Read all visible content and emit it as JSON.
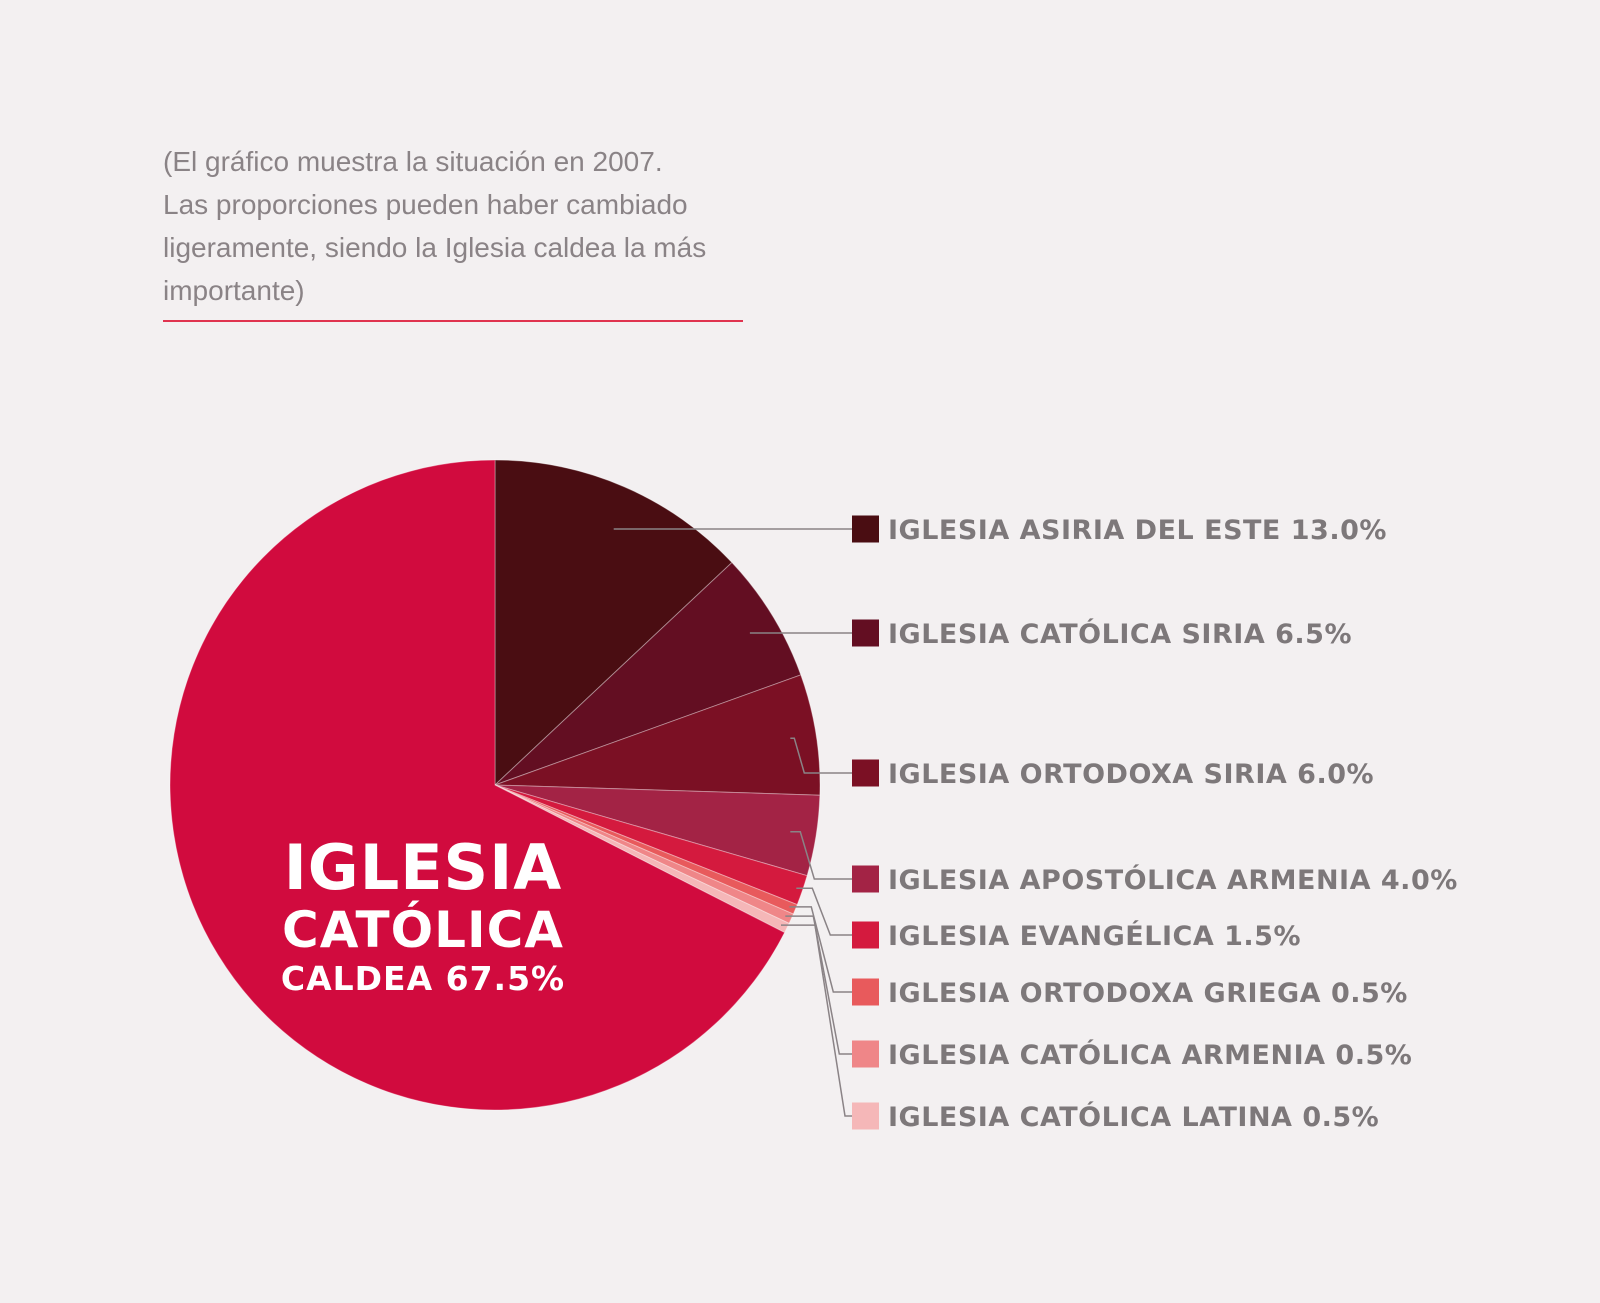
{
  "note": {
    "lines": [
      "(El gráfico muestra la situación en 2007.",
      "Las proporciones pueden haber cambiado",
      "ligeramente, siendo la Iglesia caldea la más",
      "importante)"
    ]
  },
  "chart_data": {
    "type": "pie",
    "unit": "%",
    "slices": [
      {
        "label": "IGLESIA ASIRIA DEL ESTE 13.0%",
        "value": 13.0,
        "color": "#4a0d12"
      },
      {
        "label": "IGLESIA CATÓLICA SIRIA 6.5%",
        "value": 6.5,
        "color": "#630e22"
      },
      {
        "label": "IGLESIA ORTODOXA SIRIA 6.0%",
        "value": 6.0,
        "color": "#7b1024"
      },
      {
        "label": "IGLESIA APOSTÓLICA ARMENIA 4.0%",
        "value": 4.0,
        "color": "#a32345"
      },
      {
        "label": "IGLESIA EVANGÉLICA 1.5%",
        "value": 1.5,
        "color": "#d41a3e"
      },
      {
        "label": "IGLESIA ORTODOXA GRIEGA 0.5%",
        "value": 0.5,
        "color": "#e85a5c"
      },
      {
        "label": "IGLESIA CATÓLICA ARMENIA 0.5%",
        "value": 0.5,
        "color": "#ef8688"
      },
      {
        "label": "IGLESIA CATÓLICA LATINA 0.5%",
        "value": 0.5,
        "color": "#f5b7b8"
      },
      {
        "label": "IGLESIA CATÓLICA CALDEA 67.5%",
        "value": 67.5,
        "color": "#d10b3e"
      }
    ],
    "center_label": {
      "lines": [
        "IGLESIA",
        "CATÓLICA",
        "CALDEA  67.5%"
      ]
    },
    "legend_placement": "right"
  }
}
